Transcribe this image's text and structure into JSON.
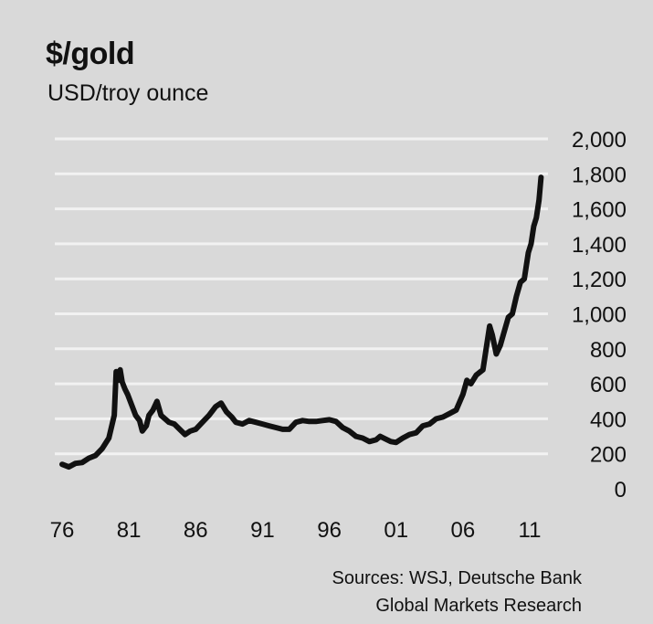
{
  "chart_data": {
    "type": "line",
    "title": "$/gold",
    "subtitle": "USD/troy ounce",
    "xlabel": "",
    "ylabel": "",
    "x_ticks": [
      "76",
      "81",
      "86",
      "91",
      "96",
      "01",
      "06",
      "11"
    ],
    "x_tick_values": [
      1976,
      1981,
      1986,
      1991,
      1996,
      2001,
      2006,
      2011
    ],
    "xlim": [
      1976,
      2012
    ],
    "y_ticks": [
      "0",
      "200",
      "400",
      "600",
      "800",
      "1,000",
      "1,200",
      "1,400",
      "1,600",
      "1,800",
      "2,000"
    ],
    "ylim": [
      0,
      2000
    ],
    "grid": "horizontal",
    "y_axis_side": "right",
    "line_color": "#111111",
    "series": [
      {
        "name": "",
        "x": [
          1976.0,
          1976.5,
          1977.0,
          1977.5,
          1978.0,
          1978.5,
          1979.0,
          1979.5,
          1979.9,
          1980.05,
          1980.2,
          1980.35,
          1980.5,
          1980.7,
          1980.9,
          1981.2,
          1981.5,
          1981.8,
          1982.0,
          1982.3,
          1982.5,
          1982.8,
          1983.1,
          1983.4,
          1983.7,
          1984.0,
          1984.4,
          1984.8,
          1985.2,
          1985.6,
          1986.0,
          1986.5,
          1987.0,
          1987.5,
          1987.9,
          1988.3,
          1988.7,
          1989.0,
          1989.5,
          1990.0,
          1990.5,
          1991.0,
          1991.5,
          1992.0,
          1992.5,
          1993.0,
          1993.5,
          1994.0,
          1994.5,
          1995.0,
          1995.5,
          1996.0,
          1996.5,
          1997.0,
          1997.5,
          1998.0,
          1998.5,
          1999.0,
          1999.5,
          1999.8,
          2000.2,
          2000.6,
          2001.0,
          2001.5,
          2002.0,
          2002.5,
          2003.0,
          2003.5,
          2004.0,
          2004.5,
          2005.0,
          2005.5,
          2006.0,
          2006.3,
          2006.6,
          2007.0,
          2007.5,
          2008.0,
          2008.2,
          2008.5,
          2008.8,
          2009.1,
          2009.4,
          2009.7,
          2010.0,
          2010.3,
          2010.6,
          2010.9,
          2011.1,
          2011.3,
          2011.5,
          2011.7,
          2011.85
        ],
        "values": [
          140,
          125,
          145,
          150,
          175,
          190,
          230,
          290,
          420,
          670,
          620,
          680,
          610,
          570,
          540,
          480,
          420,
          390,
          330,
          360,
          420,
          450,
          500,
          420,
          400,
          380,
          370,
          340,
          310,
          330,
          340,
          380,
          420,
          470,
          490,
          440,
          410,
          380,
          370,
          390,
          380,
          370,
          360,
          350,
          340,
          340,
          380,
          390,
          385,
          385,
          390,
          395,
          385,
          350,
          330,
          300,
          290,
          270,
          280,
          300,
          285,
          270,
          265,
          290,
          310,
          320,
          360,
          370,
          400,
          410,
          430,
          450,
          540,
          620,
          600,
          650,
          680,
          930,
          880,
          770,
          820,
          900,
          980,
          1000,
          1100,
          1180,
          1200,
          1350,
          1400,
          1500,
          1550,
          1650,
          1780
        ]
      }
    ]
  },
  "source_line1": "Sources: WSJ, Deutsche Bank",
  "source_line2": "Global Markets Research"
}
